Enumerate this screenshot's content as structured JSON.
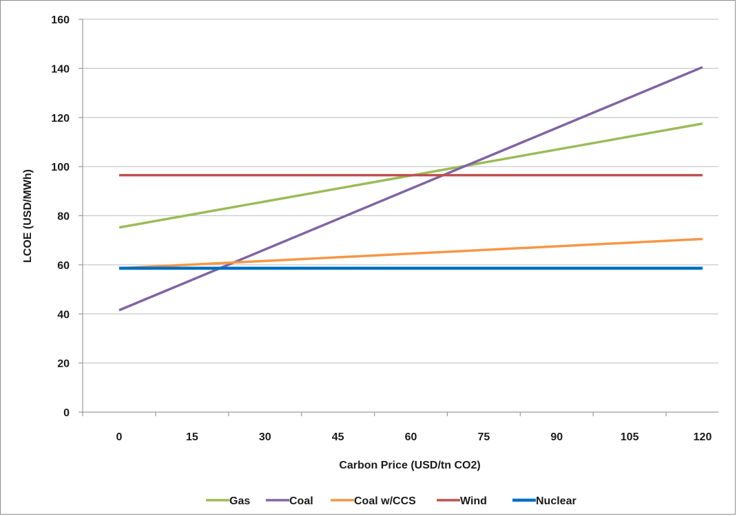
{
  "chart_data": {
    "type": "line",
    "title": "",
    "xlabel": "Carbon Price (USD/tn CO2)",
    "ylabel": "LCOE (USD/MWh)",
    "x": [
      0,
      15,
      30,
      45,
      60,
      75,
      90,
      105,
      120
    ],
    "x_tick_labels": [
      "0",
      "15",
      "30",
      "45",
      "60",
      "75",
      "90",
      "105",
      "120"
    ],
    "ylim": [
      0,
      160
    ],
    "y_ticks": [
      0,
      20,
      40,
      60,
      80,
      100,
      120,
      140,
      160
    ],
    "y_tick_labels": [
      "0",
      "20",
      "40",
      "60",
      "80",
      "100",
      "120",
      "140",
      "160"
    ],
    "grid": "horizontal",
    "legend_position": "bottom",
    "series": [
      {
        "name": "Gas",
        "color": "#9bbb59",
        "x": [
          0,
          120
        ],
        "y": [
          75.2,
          117.5
        ]
      },
      {
        "name": "Coal",
        "color": "#8064a2",
        "x": [
          0,
          120
        ],
        "y": [
          41.5,
          140.5
        ]
      },
      {
        "name": "Coal w/CCS",
        "color": "#f79646",
        "x": [
          0,
          120
        ],
        "y": [
          58.6,
          70.5
        ]
      },
      {
        "name": "Wind",
        "color": "#c0504d",
        "x": [
          0,
          120
        ],
        "y": [
          96.5,
          96.5
        ]
      },
      {
        "name": "Nuclear",
        "color": "#0070c0",
        "x": [
          0,
          120
        ],
        "y": [
          58.6,
          58.6
        ]
      }
    ]
  }
}
